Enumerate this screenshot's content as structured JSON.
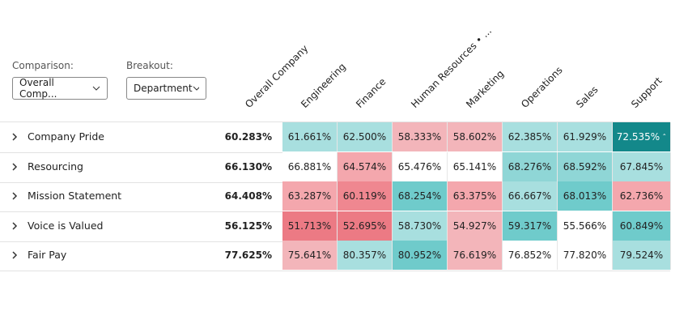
{
  "filters": [
    {
      "label": "Comparison:",
      "value": "Overall Comp..."
    },
    {
      "label": "Breakout:",
      "value": "Department"
    }
  ],
  "table": {
    "columns": [
      "Overall Company",
      "Engineering",
      "Finance",
      "Human Resources • ...",
      "Marketing",
      "Operations",
      "Sales",
      "Support"
    ],
    "rows": [
      {
        "label": "Company Pride",
        "overall": "60.283%",
        "cells": [
          "61.661%",
          "62.500%",
          "58.333%",
          "58.602%",
          "62.385%",
          "61.929%",
          "72.535%"
        ],
        "colors": [
          "#a8dfdf",
          "#a8dfdf",
          "#f3b5ba",
          "#f3b5ba",
          "#a8dfdf",
          "#a8dfdf",
          "#13888a"
        ]
      },
      {
        "label": "Resourcing",
        "overall": "66.130%",
        "cells": [
          "66.881%",
          "64.574%",
          "65.476%",
          "65.141%",
          "68.276%",
          "68.592%",
          "67.845%"
        ],
        "colors": [
          "#ffffff",
          "#f4a7ad",
          "#ffffff",
          "#ffffff",
          "#8fd6d6",
          "#8fd6d6",
          "#a8dfdf"
        ]
      },
      {
        "label": "Mission Statement",
        "overall": "64.408%",
        "cells": [
          "63.287%",
          "60.119%",
          "68.254%",
          "63.375%",
          "66.667%",
          "68.013%",
          "62.736%"
        ],
        "colors": [
          "#f4a7ad",
          "#ef8790",
          "#6fcbcb",
          "#f4a7ad",
          "#a8dfdf",
          "#6fcbcb",
          "#f4a7ad"
        ]
      },
      {
        "label": "Voice is Valued",
        "overall": "56.125%",
        "cells": [
          "51.713%",
          "52.695%",
          "58.730%",
          "54.927%",
          "59.317%",
          "55.566%",
          "60.849%"
        ],
        "colors": [
          "#ec7a84",
          "#ec7a84",
          "#a8dfdf",
          "#f3b5ba",
          "#6fcbcb",
          "#ffffff",
          "#6fcbcb"
        ]
      },
      {
        "label": "Fair Pay",
        "overall": "77.625%",
        "cells": [
          "75.641%",
          "80.357%",
          "80.952%",
          "76.619%",
          "76.852%",
          "77.820%",
          "79.524%"
        ],
        "colors": [
          "#f3b5ba",
          "#a8dfdf",
          "#6fcbcb",
          "#f3b5ba",
          "#ffffff",
          "#ffffff",
          "#a8dfdf"
        ]
      }
    ]
  }
}
